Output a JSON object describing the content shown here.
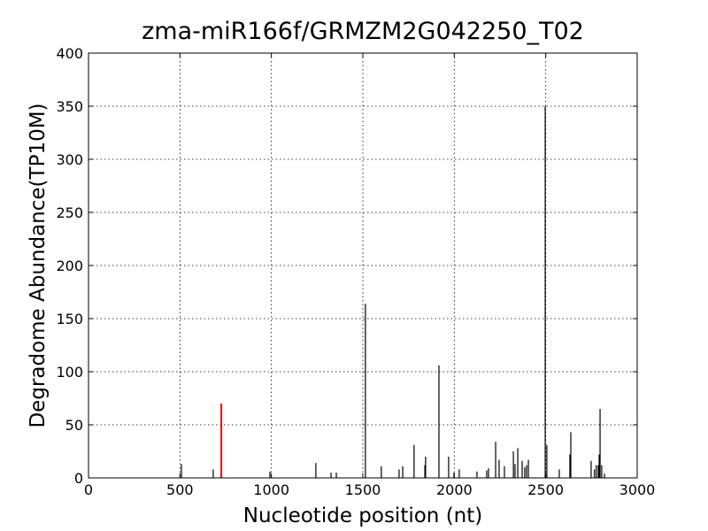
{
  "chart_data": {
    "type": "stem",
    "title": "zma-miR166f/GRMZM2G042250_T02",
    "xlabel": "Nucleotide position (nt)",
    "ylabel": "Degradome Abundance(TP10M)",
    "xlim": [
      0,
      3000
    ],
    "xticks": [
      0,
      500,
      1000,
      1500,
      2000,
      2500,
      3000
    ],
    "ylim": [
      0,
      400
    ],
    "yticks": [
      0,
      50,
      100,
      150,
      200,
      250,
      300,
      350,
      400
    ],
    "grid": true,
    "series": [
      {
        "color": "#000000",
        "x": [
          508,
          682,
          992,
          1243,
          1326,
          1355,
          1514,
          1601,
          1698,
          1718,
          1780,
          1839,
          1843,
          1916,
          1969,
          1998,
          2027,
          2124,
          2177,
          2187,
          2226,
          2245,
          2274,
          2323,
          2332,
          2347,
          2371,
          2385,
          2395,
          2405,
          2497,
          2506,
          2574,
          2632,
          2637,
          2748,
          2766,
          2776,
          2787,
          2792,
          2797,
          2806,
          2821
        ],
        "values": [
          13,
          8,
          6,
          14,
          5,
          5,
          164,
          11,
          8,
          11,
          31,
          12,
          20,
          106,
          20,
          5,
          8,
          6,
          7,
          9,
          34,
          17,
          11,
          25,
          13,
          28,
          16,
          10,
          12,
          17,
          350,
          31,
          8,
          22,
          43,
          16,
          8,
          12,
          12,
          22,
          65,
          12,
          4
        ]
      },
      {
        "color": "#ff0000",
        "x": [
          726
        ],
        "values": [
          70
        ]
      }
    ]
  }
}
